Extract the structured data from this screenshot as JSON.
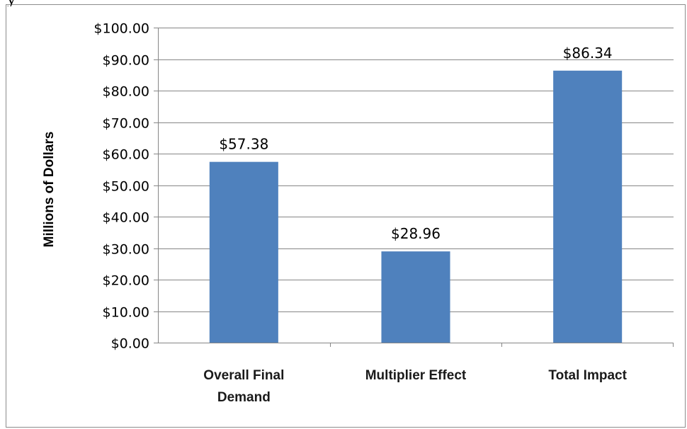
{
  "top_text_fragment": "y",
  "chart_data": {
    "type": "bar",
    "title": "",
    "xlabel": "",
    "ylabel": "Millions of Dollars",
    "categories": [
      "Overall Final Demand",
      "Multiplier Effect",
      "Total Impact"
    ],
    "category_lines": [
      [
        "Overall Final",
        "Demand"
      ],
      [
        "Multiplier Effect"
      ],
      [
        "Total Impact"
      ]
    ],
    "values": [
      57.38,
      28.96,
      86.34
    ],
    "data_labels": [
      "$57.38",
      "$28.96",
      "$86.34"
    ],
    "ylim": [
      0,
      100
    ],
    "y_ticks": [
      0,
      10,
      20,
      30,
      40,
      50,
      60,
      70,
      80,
      90,
      100
    ],
    "y_tick_labels": [
      "$0.00",
      "$10.00",
      "$20.00",
      "$30.00",
      "$40.00",
      "$50.00",
      "$60.00",
      "$70.00",
      "$80.00",
      "$90.00",
      "$100.00"
    ],
    "grid": true,
    "legend": "none",
    "colors": {
      "bar": "#4f81bd",
      "grid": "#868686",
      "axis": "#868686",
      "frame": "#8c8c8c"
    }
  }
}
